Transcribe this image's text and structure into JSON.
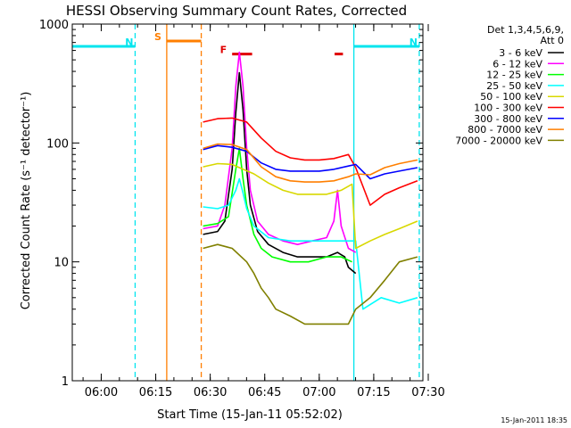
{
  "chart_data": {
    "type": "line",
    "title": "HESSI Observing Summary Count Rates, Corrected",
    "xlabel": "Start Time (15-Jan-11 05:52:02)",
    "ylabel": "Corrected Count Rate (s⁻¹ detector⁻¹)",
    "x_unit": "minutes after 05:52:02",
    "xlim": [
      0,
      96.5
    ],
    "ylim": [
      1,
      1000
    ],
    "yscale": "log",
    "x_ticks": [
      {
        "label": "06:00",
        "x": 7.97
      },
      {
        "label": "06:15",
        "x": 22.97
      },
      {
        "label": "06:30",
        "x": 37.97
      },
      {
        "label": "06:45",
        "x": 52.97
      },
      {
        "label": "07:00",
        "x": 67.97
      },
      {
        "label": "07:15",
        "x": 82.97
      },
      {
        "label": "07:30",
        "x": 97.97
      }
    ],
    "y_ticks": [
      {
        "label": "1",
        "y": 1
      },
      {
        "label": "10",
        "y": 10
      },
      {
        "label": "100",
        "y": 100
      },
      {
        "label": "1000",
        "y": 1000
      }
    ],
    "legend": {
      "header": [
        "Det 1,3,4,5,6,9,",
        "Att 0"
      ],
      "placement": "right"
    },
    "annotations": [
      {
        "letter": "N",
        "color": "#00e5ee",
        "kind": "night",
        "x_start": 0,
        "x_end": 17.3,
        "y": 650
      },
      {
        "letter": "N",
        "color": "#00e5ee",
        "kind": "night",
        "x_start": 77.5,
        "x_end": 95.5,
        "y": 650
      },
      {
        "letter": "S",
        "color": "#ff7f00",
        "kind": "saa",
        "x_start": 26,
        "x_end": 35.5,
        "y": 720
      },
      {
        "letter": "F",
        "color": "#e00000",
        "kind": "flare",
        "x_start": 44,
        "x_end": 49.5,
        "y": 560
      },
      {
        "letter": "",
        "color": "#e00000",
        "kind": "flare",
        "x_start": 72.2,
        "x_end": 74.5,
        "y": 560
      }
    ],
    "vlines": [
      {
        "x": 17.3,
        "color": "#00e5ee",
        "dash": true
      },
      {
        "x": 26,
        "color": "#ff7f00",
        "dash": false
      },
      {
        "x": 35.5,
        "color": "#ff7f00",
        "dash": true
      },
      {
        "x": 77.5,
        "color": "#00e5ee",
        "dash": false
      },
      {
        "x": 95.5,
        "color": "#00e5ee",
        "dash": true
      }
    ],
    "series": [
      {
        "name": "3 - 6 keV",
        "color": "#000000",
        "points": [
          [
            36,
            17
          ],
          [
            40,
            18
          ],
          [
            42,
            22
          ],
          [
            44,
            60
          ],
          [
            45,
            180
          ],
          [
            46,
            390
          ],
          [
            47,
            190
          ],
          [
            48,
            60
          ],
          [
            49,
            30
          ],
          [
            51,
            18
          ],
          [
            54,
            14
          ],
          [
            58,
            12
          ],
          [
            62,
            11
          ],
          [
            66,
            11
          ],
          [
            70,
            11
          ],
          [
            73,
            12
          ],
          [
            75,
            11
          ],
          [
            76,
            9
          ],
          [
            78,
            8
          ]
        ]
      },
      {
        "name": "6 - 12 keV",
        "color": "#ff00ff",
        "points": [
          [
            36,
            19
          ],
          [
            40,
            20
          ],
          [
            42,
            30
          ],
          [
            44,
            90
          ],
          [
            45,
            300
          ],
          [
            46,
            580
          ],
          [
            47,
            300
          ],
          [
            48,
            90
          ],
          [
            49,
            40
          ],
          [
            51,
            22
          ],
          [
            54,
            17
          ],
          [
            58,
            15
          ],
          [
            62,
            14
          ],
          [
            66,
            15
          ],
          [
            70,
            16
          ],
          [
            72,
            22
          ],
          [
            73,
            40
          ],
          [
            74,
            20
          ],
          [
            76,
            13
          ],
          [
            78,
            12
          ]
        ]
      },
      {
        "name": "12 - 25 keV",
        "color": "#00ff00",
        "points": [
          [
            36,
            20
          ],
          [
            40,
            21
          ],
          [
            43,
            24
          ],
          [
            45,
            60
          ],
          [
            46,
            90
          ],
          [
            47,
            50
          ],
          [
            48,
            30
          ],
          [
            50,
            17
          ],
          [
            52,
            13
          ],
          [
            55,
            11
          ],
          [
            60,
            10
          ],
          [
            65,
            10
          ],
          [
            70,
            11
          ],
          [
            74,
            11
          ],
          [
            77,
            10
          ]
        ]
      },
      {
        "name": "25 - 50 keV",
        "color": "#00ffff",
        "points": [
          [
            36,
            29
          ],
          [
            40,
            28
          ],
          [
            43,
            30
          ],
          [
            45,
            40
          ],
          [
            46,
            50
          ],
          [
            47,
            38
          ],
          [
            48,
            28
          ],
          [
            50,
            20
          ],
          [
            54,
            16
          ],
          [
            60,
            15
          ],
          [
            66,
            15
          ],
          [
            72,
            15
          ],
          [
            76,
            15
          ],
          [
            78,
            15
          ],
          [
            80,
            4
          ],
          [
            85,
            5
          ],
          [
            90,
            4.5
          ],
          [
            95,
            5
          ]
        ]
      },
      {
        "name": "50 - 100 keV",
        "color": "#d8d800",
        "points": [
          [
            36,
            63
          ],
          [
            40,
            67
          ],
          [
            44,
            66
          ],
          [
            46,
            62
          ],
          [
            50,
            55
          ],
          [
            54,
            46
          ],
          [
            58,
            40
          ],
          [
            62,
            37
          ],
          [
            66,
            37
          ],
          [
            70,
            37
          ],
          [
            74,
            40
          ],
          [
            77,
            45
          ],
          [
            78,
            13
          ],
          [
            82,
            15
          ],
          [
            86,
            17
          ],
          [
            90,
            19
          ],
          [
            95,
            22
          ]
        ]
      },
      {
        "name": "100 - 300 keV",
        "color": "#ff0000",
        "points": [
          [
            36,
            150
          ],
          [
            40,
            160
          ],
          [
            44,
            162
          ],
          [
            48,
            150
          ],
          [
            52,
            110
          ],
          [
            56,
            85
          ],
          [
            60,
            75
          ],
          [
            64,
            72
          ],
          [
            68,
            72
          ],
          [
            72,
            74
          ],
          [
            76,
            80
          ],
          [
            78,
            62
          ],
          [
            82,
            30
          ],
          [
            86,
            37
          ],
          [
            90,
            42
          ],
          [
            95,
            48
          ]
        ]
      },
      {
        "name": "300 - 800 keV",
        "color": "#0000ff",
        "points": [
          [
            36,
            88
          ],
          [
            40,
            95
          ],
          [
            44,
            92
          ],
          [
            48,
            85
          ],
          [
            52,
            68
          ],
          [
            56,
            60
          ],
          [
            60,
            58
          ],
          [
            64,
            58
          ],
          [
            68,
            58
          ],
          [
            72,
            60
          ],
          [
            76,
            64
          ],
          [
            78,
            66
          ],
          [
            82,
            50
          ],
          [
            86,
            55
          ],
          [
            90,
            58
          ],
          [
            95,
            62
          ]
        ]
      },
      {
        "name": "800 - 7000 keV",
        "color": "#ff7f00",
        "points": [
          [
            36,
            90
          ],
          [
            40,
            98
          ],
          [
            44,
            97
          ],
          [
            48,
            88
          ],
          [
            52,
            63
          ],
          [
            56,
            52
          ],
          [
            60,
            48
          ],
          [
            64,
            47
          ],
          [
            68,
            47
          ],
          [
            72,
            48
          ],
          [
            76,
            52
          ],
          [
            78,
            55
          ],
          [
            82,
            54
          ],
          [
            86,
            62
          ],
          [
            90,
            67
          ],
          [
            95,
            72
          ]
        ]
      },
      {
        "name": "7000 - 20000 keV",
        "color": "#808000",
        "points": [
          [
            36,
            13
          ],
          [
            40,
            14
          ],
          [
            44,
            13
          ],
          [
            48,
            10
          ],
          [
            50,
            8
          ],
          [
            52,
            6
          ],
          [
            54,
            5
          ],
          [
            56,
            4
          ],
          [
            60,
            3.5
          ],
          [
            64,
            3
          ],
          [
            68,
            3
          ],
          [
            72,
            3
          ],
          [
            74,
            3
          ],
          [
            76,
            3
          ],
          [
            78,
            4
          ],
          [
            82,
            5
          ],
          [
            86,
            7
          ],
          [
            90,
            10
          ],
          [
            95,
            11
          ]
        ]
      }
    ]
  },
  "footer": {
    "timestamp": "15-Jan-2011 18:35"
  }
}
